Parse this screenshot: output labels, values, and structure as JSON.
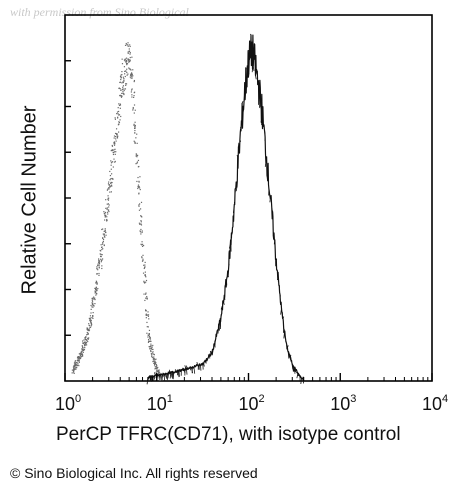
{
  "watermark": "with permission from Sino Biological",
  "copyright": "© Sino Biological Inc. All rights reserved",
  "chart_data": {
    "type": "area",
    "xlabel": "PerCP TFRC(CD71), with isotype control",
    "ylabel": "Relative Cell Number",
    "xscale": "log",
    "xlim": [
      1,
      10000
    ],
    "xticks": [
      {
        "value": 1,
        "base": "10",
        "exp": "0"
      },
      {
        "value": 10,
        "base": "10",
        "exp": "1"
      },
      {
        "value": 100,
        "base": "10",
        "exp": "2"
      },
      {
        "value": 1000,
        "base": "10",
        "exp": "3"
      },
      {
        "value": 10000,
        "base": "10",
        "exp": "4"
      }
    ],
    "ylim": [
      0,
      1
    ],
    "grid": false,
    "legend": "none",
    "series": [
      {
        "color": "#6a6a6a",
        "style": "dotted",
        "x": [
          1.2,
          1.5,
          1.8,
          2.0,
          2.3,
          2.6,
          3.0,
          3.3,
          3.6,
          4.0,
          4.4,
          4.8,
          5.2,
          5.6,
          6.0,
          6.5,
          7.0,
          7.5,
          8.0,
          9.0,
          10,
          11
        ],
        "y": [
          0.03,
          0.08,
          0.15,
          0.22,
          0.32,
          0.42,
          0.55,
          0.65,
          0.74,
          0.83,
          0.9,
          0.93,
          0.88,
          0.77,
          0.64,
          0.5,
          0.36,
          0.24,
          0.14,
          0.07,
          0.03,
          0.01
        ]
      },
      {
        "color": "#111111",
        "style": "solid",
        "x": [
          8,
          12,
          18,
          25,
          32,
          40,
          50,
          60,
          70,
          80,
          90,
          100,
          110,
          120,
          130,
          140,
          160,
          180,
          200,
          230,
          260,
          300,
          350,
          400
        ],
        "y": [
          0.01,
          0.02,
          0.03,
          0.04,
          0.05,
          0.08,
          0.18,
          0.32,
          0.5,
          0.68,
          0.82,
          0.92,
          0.95,
          0.9,
          0.84,
          0.78,
          0.62,
          0.48,
          0.35,
          0.2,
          0.1,
          0.05,
          0.02,
          0.0
        ]
      }
    ]
  }
}
